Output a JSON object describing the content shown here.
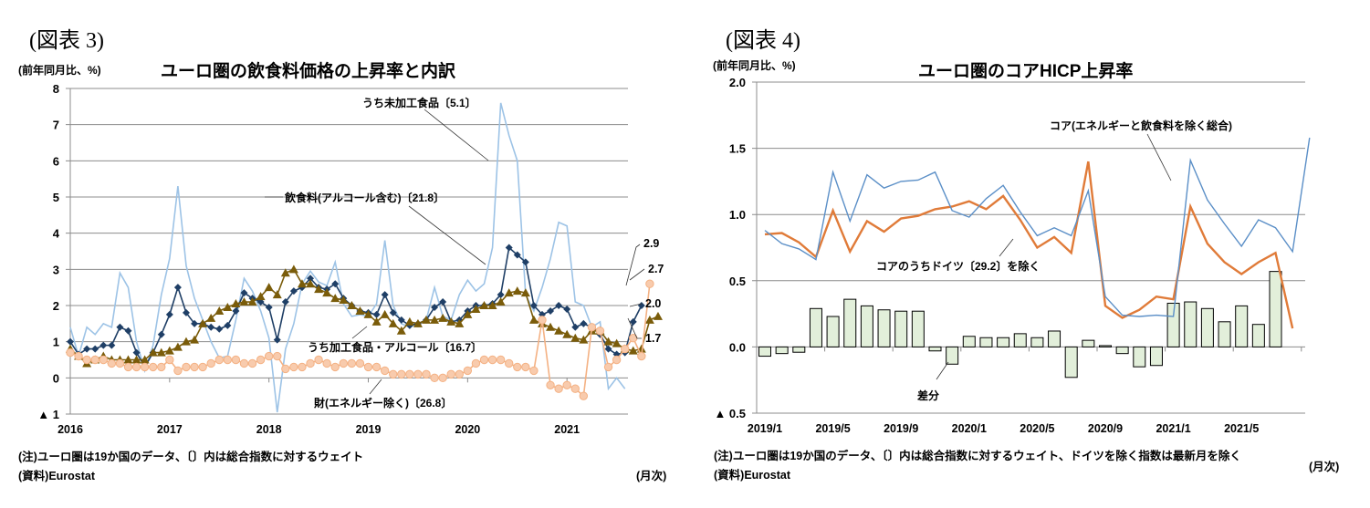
{
  "left": {
    "figure_label": "(図表 3)",
    "unit": "(前年同月比、%)",
    "note": "(注)ユーロ圏は19か国のデータ、〔〕内は総合指数に対するウェイト",
    "source": "(資料)Eurostat",
    "period": "(月次)"
  },
  "right": {
    "figure_label": "(図表 4)",
    "unit": "(前年同月比、%)",
    "note": "(注)ユーロ圏は19か国のデータ、〔〕内は総合指数に対するウェイト、ドイツを除く指数は最新月を除く",
    "source": "(資料)Eurostat",
    "period": "(月次)"
  },
  "chart_data": [
    {
      "type": "line",
      "title": "ユーロ圏の飲食料価格の上昇率と内訳",
      "xlabel": "",
      "ylabel": "(前年同月比、%)",
      "ylim": [
        -1,
        8
      ],
      "yticks": [
        "8",
        "7",
        "6",
        "5",
        "4",
        "3",
        "2",
        "1",
        "0",
        "▲ 1"
      ],
      "xticks": [
        "2016",
        "2017",
        "2018",
        "2019",
        "2020",
        "2021"
      ],
      "x_start": "2016/1",
      "x_end": "2021/8",
      "grid": true,
      "series": [
        {
          "name": "うち未加工食品〔5.1〕",
          "color": "#9dc3e6",
          "marker": "none",
          "values": [
            1.4,
            0.6,
            1.4,
            1.2,
            1.5,
            1.4,
            2.9,
            2.5,
            1.0,
            0.2,
            0.9,
            2.3,
            3.3,
            5.3,
            3.1,
            2.2,
            1.6,
            1.0,
            0.55,
            0.6,
            1.6,
            2.75,
            2.4,
            1.85,
            1.1,
            -0.95,
            0.8,
            1.5,
            2.6,
            2.95,
            2.65,
            2.55,
            3.2,
            2.05,
            1.7,
            1.75,
            1.7,
            2.05,
            3.8,
            2.0,
            1.5,
            1.4,
            1.5,
            1.6,
            2.5,
            1.7,
            1.6,
            2.3,
            2.7,
            2.4,
            2.6,
            3.6,
            7.6,
            6.7,
            6.0,
            2.3,
            1.85,
            2.5,
            3.3,
            4.3,
            4.2,
            2.1,
            2.0,
            1.4,
            1.55,
            -0.3,
            0.0,
            -0.3
          ]
        },
        {
          "name": "飲食料(アルコール含む)〔21.8〕",
          "color": "#1f3f66",
          "marker": "diamond",
          "values": [
            1.0,
            0.65,
            0.8,
            0.8,
            0.9,
            0.9,
            1.4,
            1.3,
            0.7,
            0.3,
            0.7,
            1.2,
            1.75,
            2.5,
            1.8,
            1.5,
            1.5,
            1.4,
            1.35,
            1.45,
            1.85,
            2.35,
            2.2,
            2.1,
            1.95,
            1.05,
            2.1,
            2.4,
            2.5,
            2.75,
            2.5,
            2.45,
            2.6,
            2.2,
            2.0,
            1.85,
            1.8,
            1.75,
            2.3,
            1.8,
            1.6,
            1.45,
            1.5,
            1.6,
            1.95,
            2.1,
            1.55,
            1.6,
            1.85,
            2.0,
            2.0,
            2.05,
            2.3,
            3.6,
            3.4,
            3.2,
            2.0,
            1.75,
            1.85,
            2.0,
            1.9,
            1.4,
            1.5,
            1.4,
            1.2,
            0.8,
            0.65,
            0.7,
            1.55,
            2.0
          ]
        },
        {
          "name": "うち加工食品・アルコール〔16.7〕",
          "color": "#7a5c0a",
          "marker": "triangle",
          "values": [
            0.8,
            0.6,
            0.4,
            0.5,
            0.6,
            0.5,
            0.5,
            0.5,
            0.5,
            0.5,
            0.7,
            0.7,
            0.75,
            0.85,
            1.0,
            1.05,
            1.5,
            1.65,
            1.85,
            1.95,
            2.05,
            2.1,
            2.1,
            2.25,
            2.5,
            2.3,
            2.9,
            3.0,
            2.6,
            2.6,
            2.45,
            2.35,
            2.2,
            2.15,
            2.0,
            1.85,
            1.75,
            1.55,
            1.75,
            1.5,
            1.3,
            1.55,
            1.5,
            1.6,
            1.6,
            1.65,
            1.55,
            1.5,
            1.75,
            1.9,
            2.0,
            2.0,
            2.1,
            2.35,
            2.4,
            2.35,
            1.6,
            1.5,
            1.4,
            1.3,
            1.2,
            1.1,
            1.05,
            1.3,
            1.3,
            1.0,
            0.95,
            0.8,
            0.75,
            0.8,
            1.6,
            1.7
          ]
        },
        {
          "name": "財(エネルギー除く)〔26.8〕",
          "color": "#f4b183",
          "marker": "circle",
          "values": [
            0.7,
            0.6,
            0.5,
            0.5,
            0.5,
            0.4,
            0.4,
            0.3,
            0.3,
            0.3,
            0.3,
            0.3,
            0.5,
            0.2,
            0.3,
            0.3,
            0.3,
            0.4,
            0.5,
            0.5,
            0.5,
            0.4,
            0.4,
            0.5,
            0.6,
            0.6,
            0.25,
            0.3,
            0.3,
            0.4,
            0.5,
            0.4,
            0.3,
            0.4,
            0.4,
            0.4,
            0.3,
            0.3,
            0.2,
            0.1,
            0.1,
            0.1,
            0.1,
            0.1,
            0.0,
            0.0,
            0.1,
            0.1,
            0.2,
            0.4,
            0.5,
            0.5,
            0.5,
            0.4,
            0.3,
            0.3,
            0.2,
            1.6,
            -0.2,
            -0.3,
            -0.2,
            -0.3,
            -0.5,
            1.4,
            1.3,
            0.3,
            0.5,
            0.8,
            1.1,
            0.6,
            2.6
          ]
        }
      ],
      "annotations": [
        "うち未加工食品〔5.1〕",
        "飲食料(アルコール含む)〔21.8〕",
        "うち加工食品・アルコール〔16.7〕",
        "財(エネルギー除く)〔26.8〕",
        "2.9",
        "2.7",
        "2.0",
        "1.7"
      ]
    },
    {
      "type": "line",
      "title": "ユーロ圏のコアHICP上昇率",
      "xlabel": "",
      "ylabel": "(前年同月比、%)",
      "ylim": [
        -0.5,
        2.0
      ],
      "yticks": [
        "2.0",
        "1.5",
        "1.0",
        "0.5",
        "0.0",
        "▲ 0.5"
      ],
      "xticks": [
        "2019/1",
        "2019/5",
        "2019/9",
        "2020/1",
        "2020/5",
        "2020/9",
        "2021/1",
        "2021/5"
      ],
      "x_start": "2019/1",
      "x_end": "2021/8",
      "grid": true,
      "series": [
        {
          "name": "コア(エネルギーと飲食料を除く総合)",
          "type": "line",
          "color": "#5b8fc7",
          "values": [
            0.88,
            0.78,
            0.74,
            0.66,
            1.32,
            0.95,
            1.3,
            1.2,
            1.25,
            1.26,
            1.32,
            1.03,
            0.98,
            1.12,
            1.22,
            1.02,
            0.84,
            0.9,
            0.84,
            1.18,
            0.38,
            0.24,
            0.23,
            0.24,
            0.23,
            1.41,
            1.11,
            0.93,
            0.76,
            0.96,
            0.9,
            0.72,
            1.58
          ]
        },
        {
          "name": "コアのうちドイツ〔29.2〕を除く",
          "type": "line",
          "color": "#e07b39",
          "values": [
            0.85,
            0.86,
            0.79,
            0.68,
            1.03,
            0.72,
            0.95,
            0.87,
            0.97,
            0.99,
            1.04,
            1.06,
            1.1,
            1.04,
            1.14,
            0.96,
            0.75,
            0.83,
            0.71,
            1.4,
            0.31,
            0.22,
            0.28,
            0.38,
            0.36,
            1.06,
            0.78,
            0.64,
            0.55,
            0.64,
            0.71,
            0.14
          ]
        },
        {
          "name": "差分",
          "type": "bar",
          "color": "#e2efda",
          "values": [
            -0.07,
            -0.05,
            -0.04,
            0.29,
            0.23,
            0.36,
            0.31,
            0.28,
            0.27,
            0.27,
            -0.03,
            -0.13,
            0.08,
            0.07,
            0.07,
            0.1,
            0.07,
            0.12,
            -0.23,
            0.05,
            0.01,
            -0.05,
            -0.15,
            -0.14,
            0.33,
            0.34,
            0.29,
            0.19,
            0.31,
            0.17,
            0.57
          ]
        }
      ],
      "annotations": [
        "コア(エネルギーと飲食料を除く総合)",
        "コアのうちドイツ〔29.2〕を除く",
        "差分"
      ]
    }
  ]
}
